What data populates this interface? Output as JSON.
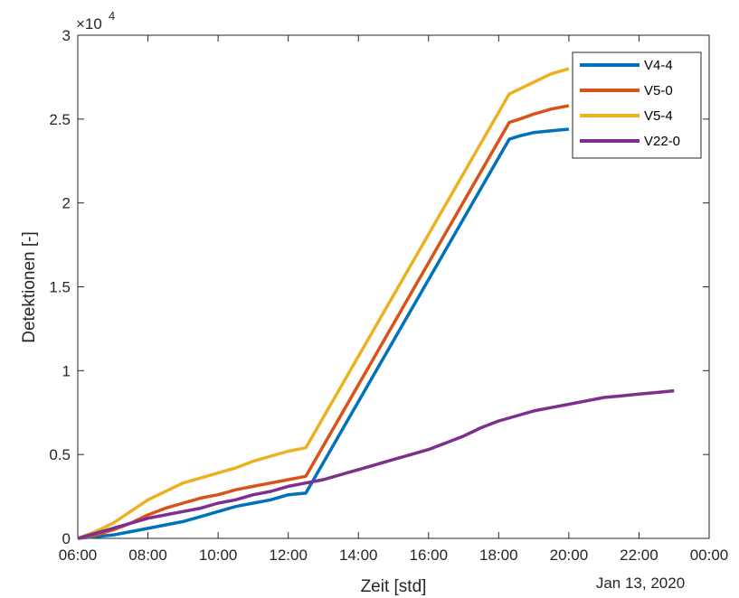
{
  "chart_data": {
    "type": "line",
    "title": "",
    "xlabel": "Zeit [std]",
    "ylabel": "Detektionen [-]",
    "y_exponent_label": "×10",
    "y_exponent_power": "4",
    "date_label": "Jan 13, 2020",
    "x_unit": "hours of day",
    "xlim": [
      6,
      24
    ],
    "ylim": [
      0,
      3
    ],
    "x_ticks": [
      {
        "value": 6,
        "label": "06:00"
      },
      {
        "value": 8,
        "label": "08:00"
      },
      {
        "value": 10,
        "label": "10:00"
      },
      {
        "value": 12,
        "label": "12:00"
      },
      {
        "value": 14,
        "label": "14:00"
      },
      {
        "value": 16,
        "label": "16:00"
      },
      {
        "value": 18,
        "label": "18:00"
      },
      {
        "value": 20,
        "label": "20:00"
      },
      {
        "value": 22,
        "label": "22:00"
      },
      {
        "value": 24,
        "label": "00:00"
      }
    ],
    "y_ticks": [
      {
        "value": 0,
        "label": "0"
      },
      {
        "value": 0.5,
        "label": "0.5"
      },
      {
        "value": 1,
        "label": "1"
      },
      {
        "value": 1.5,
        "label": "1.5"
      },
      {
        "value": 2,
        "label": "2"
      },
      {
        "value": 2.5,
        "label": "2.5"
      },
      {
        "value": 3,
        "label": "3"
      }
    ],
    "grid": false,
    "legend_position": "top-right",
    "series": [
      {
        "name": "V4-4",
        "color": "#0072BD",
        "x": [
          6,
          6.5,
          7,
          7.5,
          8,
          8.5,
          9,
          9.5,
          10,
          10.5,
          11,
          11.5,
          12,
          12.5,
          18.3,
          18.6,
          19,
          19.5,
          20
        ],
        "y": [
          0,
          0.01,
          0.02,
          0.04,
          0.06,
          0.08,
          0.1,
          0.13,
          0.16,
          0.19,
          0.21,
          0.23,
          0.26,
          0.27,
          2.38,
          2.4,
          2.42,
          2.43,
          2.44
        ]
      },
      {
        "name": "V5-0",
        "color": "#D95319",
        "x": [
          6,
          6.5,
          7,
          7.5,
          8,
          8.5,
          9,
          9.5,
          10,
          10.5,
          11,
          11.5,
          12,
          12.5,
          18.3,
          18.6,
          19,
          19.5,
          20
        ],
        "y": [
          0,
          0.02,
          0.05,
          0.09,
          0.14,
          0.18,
          0.21,
          0.24,
          0.26,
          0.29,
          0.31,
          0.33,
          0.35,
          0.37,
          2.48,
          2.5,
          2.53,
          2.56,
          2.58
        ]
      },
      {
        "name": "V5-4",
        "color": "#EDB120",
        "x": [
          6,
          6.5,
          7,
          7.5,
          8,
          8.5,
          9,
          9.5,
          10,
          10.5,
          11,
          11.5,
          12,
          12.5,
          18.3,
          18.6,
          19,
          19.5,
          20
        ],
        "y": [
          0,
          0.04,
          0.09,
          0.16,
          0.23,
          0.28,
          0.33,
          0.36,
          0.39,
          0.42,
          0.46,
          0.49,
          0.52,
          0.54,
          2.65,
          2.68,
          2.72,
          2.77,
          2.8
        ]
      },
      {
        "name": "V22-0",
        "color": "#7E2F8E",
        "x": [
          6,
          6.5,
          7,
          7.5,
          8,
          8.5,
          9,
          9.5,
          10,
          10.5,
          11,
          11.5,
          12,
          12.5,
          13,
          13.5,
          14,
          14.5,
          15,
          15.5,
          16,
          16.5,
          17,
          17.5,
          18,
          18.5,
          19,
          19.5,
          20,
          20.5,
          21,
          21.5,
          22,
          22.5,
          23
        ],
        "y": [
          0,
          0.03,
          0.06,
          0.09,
          0.12,
          0.14,
          0.16,
          0.18,
          0.21,
          0.23,
          0.26,
          0.28,
          0.31,
          0.33,
          0.35,
          0.38,
          0.41,
          0.44,
          0.47,
          0.5,
          0.53,
          0.57,
          0.61,
          0.66,
          0.7,
          0.73,
          0.76,
          0.78,
          0.8,
          0.82,
          0.84,
          0.85,
          0.86,
          0.87,
          0.88
        ]
      }
    ]
  }
}
